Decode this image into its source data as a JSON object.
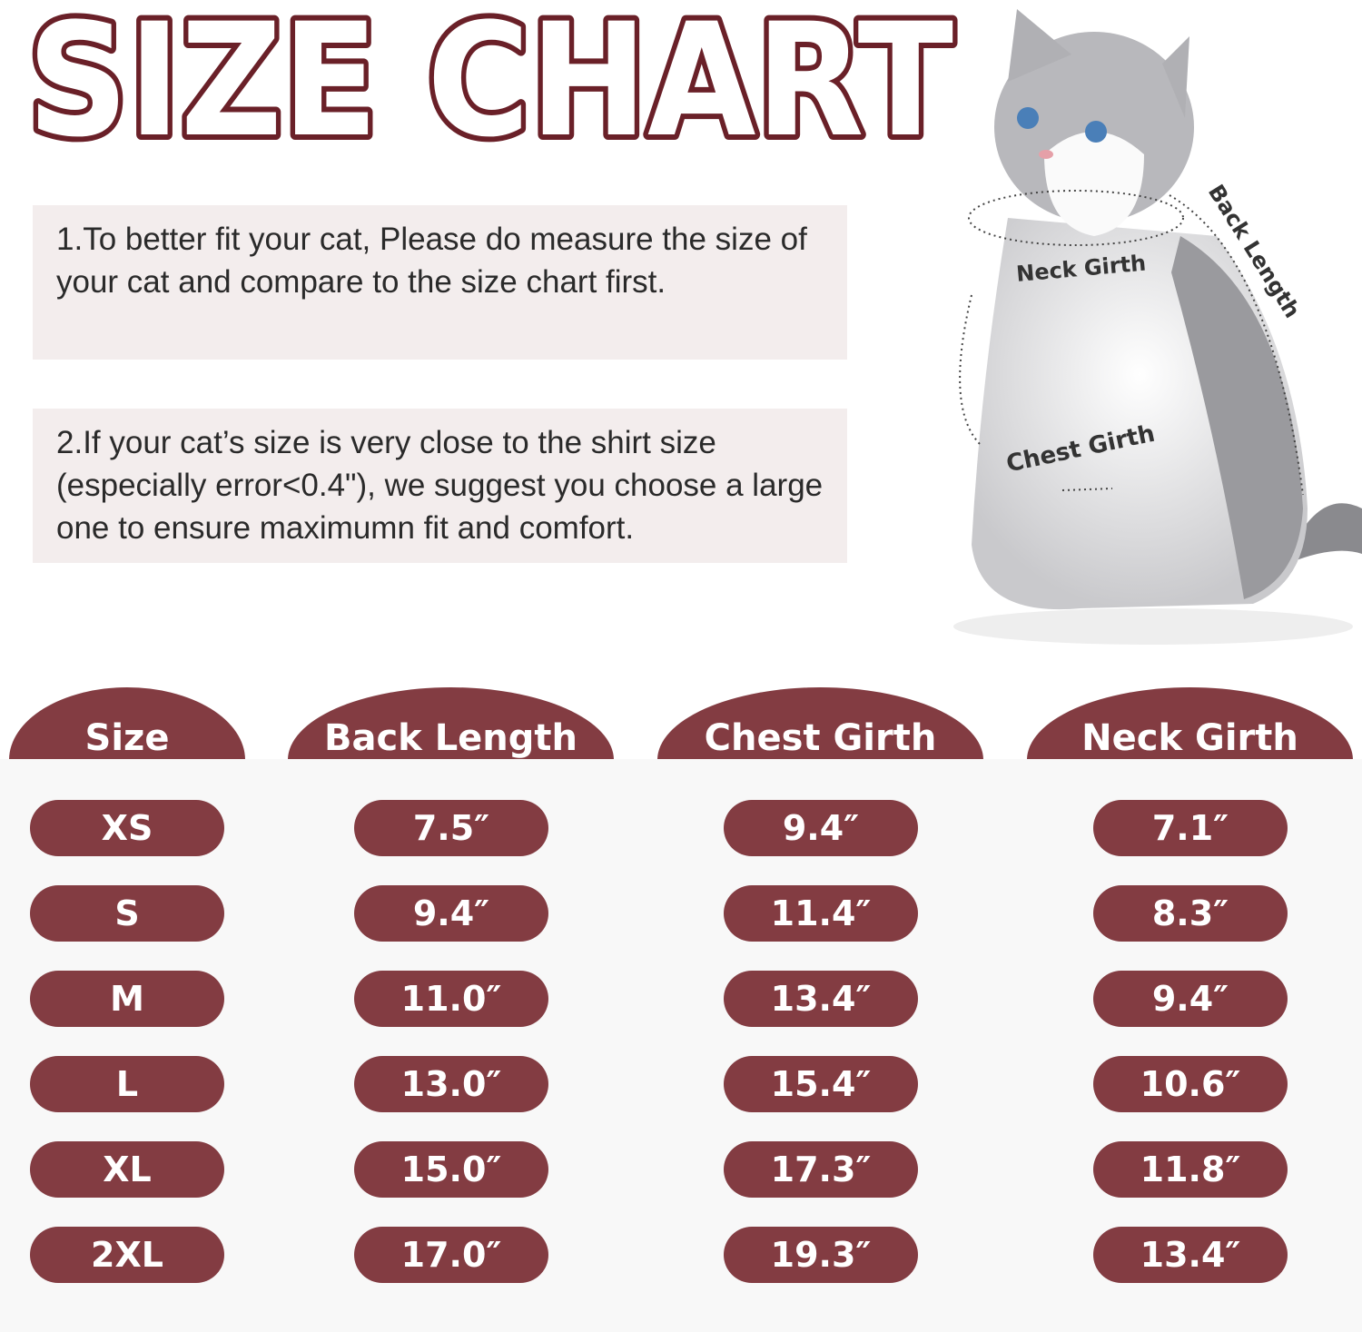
{
  "title": "SIZE CHART",
  "colors": {
    "accent": "#833c42",
    "title_outline": "#6a2028",
    "note_bg": "#f3eded",
    "table_bg": "#f8f8f8"
  },
  "notes": [
    "1.To better fit your cat, Please do measure the size of your cat and compare to the size chart first.",
    "2.If your cat’s size is very close to the shirt size (especially error<0.4\"), we suggest you choose a large one to ensure maximumn fit and comfort."
  ],
  "diagram": {
    "neck": "Neck Girth",
    "back": "Back Length",
    "chest": "Chest Girth"
  },
  "table": {
    "headers": [
      "Size",
      "Back Length",
      "Chest Girth",
      "Neck Girth"
    ],
    "rows": [
      [
        "XS",
        "7.5″",
        "9.4″",
        "7.1″"
      ],
      [
        "S",
        "9.4″",
        "11.4″",
        "8.3″"
      ],
      [
        "M",
        "11.0″",
        "13.4″",
        "9.4″"
      ],
      [
        "L",
        "13.0″",
        "15.4″",
        "10.6″"
      ],
      [
        "XL",
        "15.0″",
        "17.3″",
        "11.8″"
      ],
      [
        "2XL",
        "17.0″",
        "19.3″",
        "13.4″"
      ]
    ]
  }
}
